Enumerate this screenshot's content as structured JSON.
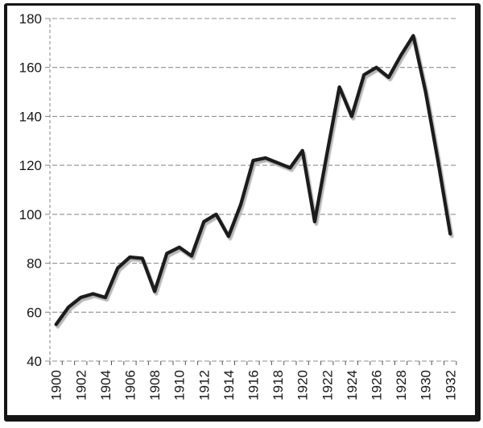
{
  "figure": {
    "description": "Scanned line chart figure, index series 1900-1932",
    "title": "",
    "legend": "none"
  },
  "colors": {
    "line": "#1c1c1c",
    "line_shadow": "#b5b5b5",
    "grid": "#8f8f8f",
    "text": "#161616",
    "frame": "#151515",
    "background": "#ffffff"
  },
  "chart_data": {
    "type": "line",
    "title": "",
    "xlabel": "",
    "ylabel": "",
    "x": [
      1900,
      1901,
      1902,
      1903,
      1904,
      1905,
      1906,
      1907,
      1908,
      1909,
      1910,
      1911,
      1912,
      1913,
      1914,
      1915,
      1916,
      1917,
      1918,
      1919,
      1920,
      1921,
      1922,
      1923,
      1924,
      1925,
      1926,
      1927,
      1928,
      1929,
      1930,
      1931,
      1932
    ],
    "values": [
      55,
      62,
      66,
      67.5,
      66,
      78,
      82.5,
      82,
      68.5,
      84,
      86.5,
      83,
      97,
      100,
      91,
      104,
      122,
      123,
      121,
      119,
      126,
      97,
      125,
      152,
      140,
      157,
      160,
      156,
      165,
      173,
      150,
      122,
      92
    ],
    "x_tick_labels": [
      "1900",
      "1902",
      "1904",
      "1906",
      "1908",
      "1910",
      "1912",
      "1914",
      "1916",
      "1918",
      "1920",
      "1922",
      "1924",
      "1926",
      "1928",
      "1930",
      "1932"
    ],
    "y_tick_labels": [
      "40",
      "60",
      "80",
      "100",
      "120",
      "140",
      "160",
      "180"
    ],
    "ylim": [
      40,
      180
    ],
    "y_step": 20,
    "xlim_years": [
      1900,
      1932
    ],
    "grid": "horizontal dashed",
    "x_label_rotation_deg": -90,
    "legend_position": "none"
  }
}
